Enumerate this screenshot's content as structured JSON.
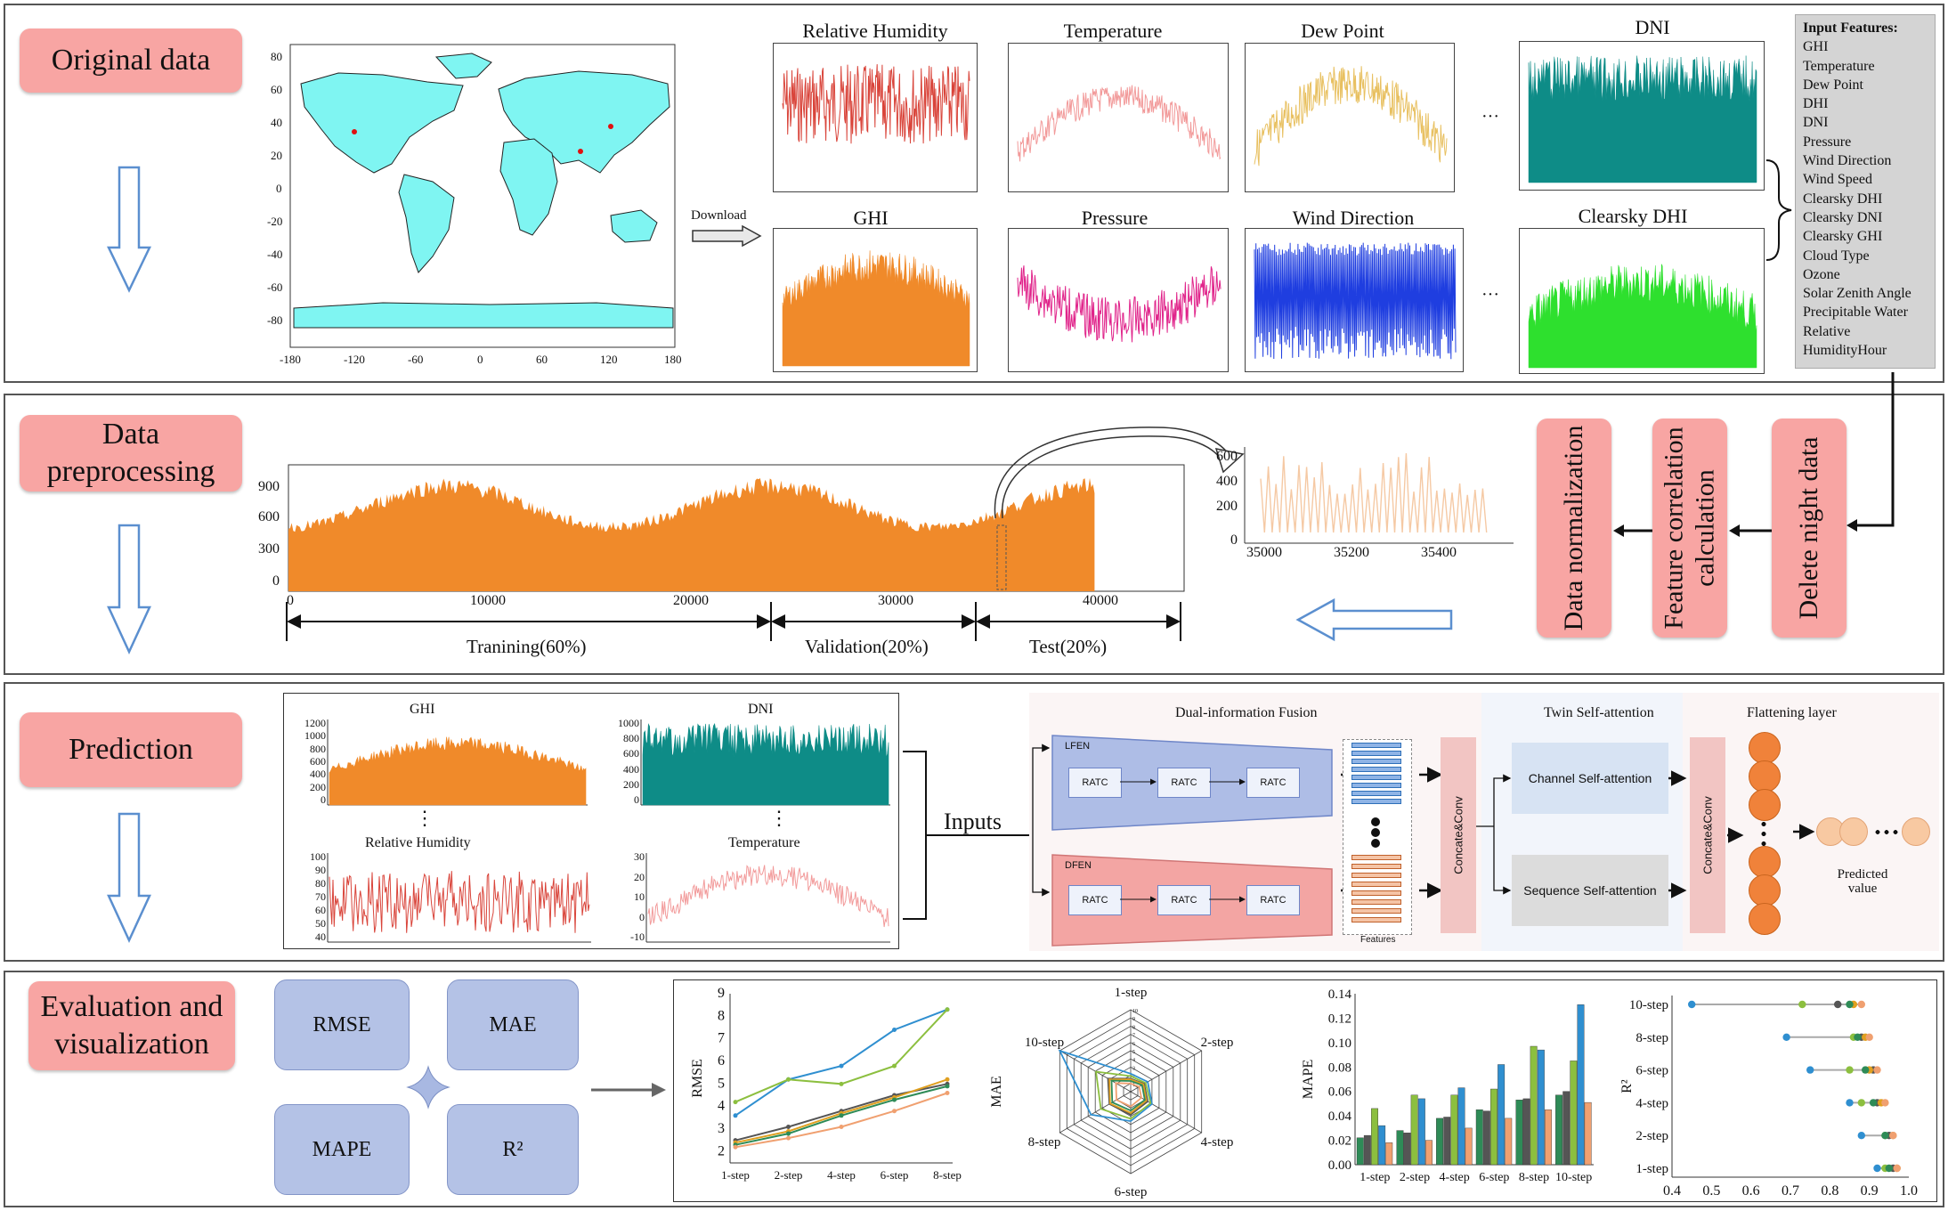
{
  "stages": {
    "original": "Original data",
    "preprocessing": "Data preprocessing",
    "prediction": "Prediction",
    "evaluation": "Evaluation and visualization"
  },
  "map": {
    "y_ticks": [
      "80",
      "60",
      "40",
      "20",
      "0",
      "-20",
      "-40",
      "-60",
      "-80"
    ],
    "x_ticks": [
      "-180",
      "-120",
      "-60",
      "0",
      "60",
      "120",
      "180"
    ],
    "download_label": "Download"
  },
  "top_panels": {
    "relative_humidity": "Relative Humidity",
    "temperature": "Temperature",
    "dew_point": "Dew Point",
    "dni": "DNI",
    "ghi": "GHI",
    "pressure": "Pressure",
    "wind_direction": "Wind Direction",
    "clearsky_dhi": "Clearsky DHI",
    "ellipsis": "···"
  },
  "colors": {
    "relative_humidity": "#d9443a",
    "temperature": "#f29a9a",
    "dew_point": "#e8c060",
    "dni": "#0e8c87",
    "ghi": "#f08a2a",
    "pressure": "#e0238a",
    "wind_direction": "#1f3ee0",
    "clearsky_dhi": "#2ee02e",
    "stage_pink": "#f8a5a3",
    "metric_blue": "#b4c2e6",
    "arrow_blue": "#5b8fcf"
  },
  "features": {
    "title": "Input Features:",
    "items": [
      "GHI",
      "Temperature",
      "Dew Point",
      "DHI",
      "DNI",
      "Pressure",
      "Wind Direction",
      "Wind Speed",
      "Clearsky DHI",
      "Clearsky DNI",
      "Clearsky GHI",
      "Cloud Type",
      "Ozone",
      "Solar Zenith Angle",
      "Precipitable Water",
      "Relative",
      "HumidityHour"
    ]
  },
  "preprocess": {
    "series_y_ticks": [
      "900",
      "600",
      "300",
      "0"
    ],
    "series_x_ticks": [
      "0",
      "10000",
      "20000",
      "30000",
      "40000"
    ],
    "zoom_y_ticks": [
      "600",
      "400",
      "200",
      "0"
    ],
    "zoom_x_ticks": [
      "35000",
      "35200",
      "35400"
    ],
    "split_training": "Tranining(60%)",
    "split_validation": "Validation(20%)",
    "split_test": "Test(20%)",
    "steps": [
      "Data normalization",
      "Feature correlation calculation",
      "Delete night data"
    ]
  },
  "prediction": {
    "ghi_title": "GHI",
    "ghi_y_ticks": [
      "1200",
      "1000",
      "800",
      "600",
      "400",
      "200",
      "0"
    ],
    "dni_title": "DNI",
    "dni_y_ticks": [
      "1000",
      "800",
      "600",
      "400",
      "200",
      "0"
    ],
    "rh_title": "Relative Humidity",
    "rh_y_ticks": [
      "100",
      "90",
      "80",
      "70",
      "60",
      "50",
      "40"
    ],
    "temp_title": "Temperature",
    "temp_y_ticks": [
      "30",
      "20",
      "10",
      "0",
      "-10"
    ],
    "vdots": "⋮",
    "inputs_label": "Inputs",
    "fusion_title": "Dual-information Fusion",
    "twin_title": "Twin Self-attention",
    "flatten_title": "Flattening layer",
    "lfen_label": "LFEN",
    "dfen_label": "DFEN",
    "ratc_label": "RATC",
    "features_label": "Features",
    "concat_label": "Concate&Conv",
    "channel_attention": "Channel Self-attention",
    "sequence_attention": "Sequence Self-attention",
    "predicted_value": "Predicted value"
  },
  "evaluation": {
    "metrics": [
      "RMSE",
      "MAE",
      "MAPE",
      "R²"
    ]
  },
  "chart_data": [
    {
      "type": "line",
      "ylabel": "RMSE",
      "categories": [
        "1-step",
        "2-step",
        "4-step",
        "6-step",
        "8-step"
      ],
      "y_ticks": [
        "9",
        "8",
        "7",
        "6",
        "5",
        "4",
        "3",
        "2"
      ],
      "ylim": [
        1.5,
        9
      ],
      "series": [
        {
          "color": "#2f8fd0",
          "values": [
            3.6,
            5.2,
            5.8,
            7.4,
            8.3
          ]
        },
        {
          "color": "#8cbf3f",
          "values": [
            4.2,
            5.2,
            5.0,
            5.8,
            8.3
          ]
        },
        {
          "color": "#555555",
          "values": [
            2.5,
            3.1,
            3.8,
            4.5,
            5.0
          ]
        },
        {
          "color": "#e0a020",
          "values": [
            2.4,
            2.9,
            3.7,
            4.4,
            5.2
          ]
        },
        {
          "color": "#2e8b57",
          "values": [
            2.3,
            2.8,
            3.6,
            4.3,
            4.9
          ]
        },
        {
          "color": "#f0a070",
          "values": [
            2.2,
            2.6,
            3.1,
            3.8,
            4.6
          ]
        }
      ]
    },
    {
      "type": "radar",
      "ylabel": "MAE",
      "axes": [
        "1-step",
        "2-step",
        "4-step",
        "6-step",
        "8-step",
        "10-step"
      ],
      "rmax": 10,
      "ring_labels": [
        "10",
        "9",
        "8",
        "7",
        "6",
        "5",
        "4",
        "3",
        "2",
        "1"
      ],
      "series": [
        {
          "color": "#2f8fd0",
          "values": [
            2.2,
            2.4,
            3.0,
            3.6,
            5.6,
            10.0
          ]
        },
        {
          "color": "#8cbf3f",
          "values": [
            1.9,
            2.1,
            2.8,
            3.3,
            4.2,
            4.9
          ]
        },
        {
          "color": "#555555",
          "values": [
            1.6,
            1.9,
            2.4,
            2.8,
            3.0,
            3.2
          ]
        },
        {
          "color": "#e0a020",
          "values": [
            1.5,
            1.8,
            2.2,
            2.6,
            2.9,
            3.0
          ]
        },
        {
          "color": "#2e8b57",
          "values": [
            1.3,
            1.6,
            2.0,
            2.3,
            2.6,
            2.7
          ]
        },
        {
          "color": "#f0a070",
          "values": [
            1.0,
            1.2,
            1.5,
            1.8,
            2.0,
            2.1
          ]
        }
      ]
    },
    {
      "type": "bar",
      "ylabel": "MAPE",
      "categories": [
        "1-step",
        "2-step",
        "4-step",
        "6-step",
        "8-step",
        "10-step"
      ],
      "y_ticks": [
        "0.14",
        "0.12",
        "0.10",
        "0.08",
        "0.06",
        "0.04",
        "0.02",
        "0.00"
      ],
      "ylim": [
        0,
        0.14
      ],
      "series": [
        {
          "color": "#2e8b57",
          "values": [
            0.022,
            0.028,
            0.038,
            0.045,
            0.053,
            0.057
          ]
        },
        {
          "color": "#555555",
          "values": [
            0.024,
            0.026,
            0.039,
            0.044,
            0.054,
            0.06
          ]
        },
        {
          "color": "#8cbf3f",
          "values": [
            0.046,
            0.057,
            0.057,
            0.062,
            0.097,
            0.085
          ]
        },
        {
          "color": "#2f8fd0",
          "values": [
            0.032,
            0.054,
            0.063,
            0.082,
            0.094,
            0.131
          ]
        },
        {
          "color": "#f0a070",
          "values": [
            0.018,
            0.02,
            0.03,
            0.038,
            0.045,
            0.051
          ]
        }
      ]
    },
    {
      "type": "dot",
      "ylabel": "R²",
      "categories": [
        "10-step",
        "8-step",
        "6-step",
        "4-step",
        "2-step",
        "1-step"
      ],
      "x_ticks": [
        "0.4",
        "0.5",
        "0.6",
        "0.7",
        "0.8",
        "0.9",
        "1.0"
      ],
      "xlim": [
        0.4,
        1.0
      ],
      "series": [
        {
          "color": "#2f8fd0",
          "values": [
            0.45,
            0.69,
            0.75,
            0.85,
            0.88,
            0.92
          ]
        },
        {
          "color": "#8cbf3f",
          "values": [
            0.73,
            0.86,
            0.85,
            0.88,
            0.94,
            0.94
          ]
        },
        {
          "color": "#555555",
          "values": [
            0.82,
            0.88,
            0.91,
            0.92,
            0.95,
            0.96
          ]
        },
        {
          "color": "#e0a020",
          "values": [
            0.86,
            0.89,
            0.9,
            0.93,
            0.96,
            0.97
          ]
        },
        {
          "color": "#2e8b57",
          "values": [
            0.85,
            0.87,
            0.89,
            0.91,
            0.94,
            0.95
          ]
        },
        {
          "color": "#f0a070",
          "values": [
            0.88,
            0.9,
            0.92,
            0.94,
            0.96,
            0.97
          ]
        }
      ]
    }
  ]
}
